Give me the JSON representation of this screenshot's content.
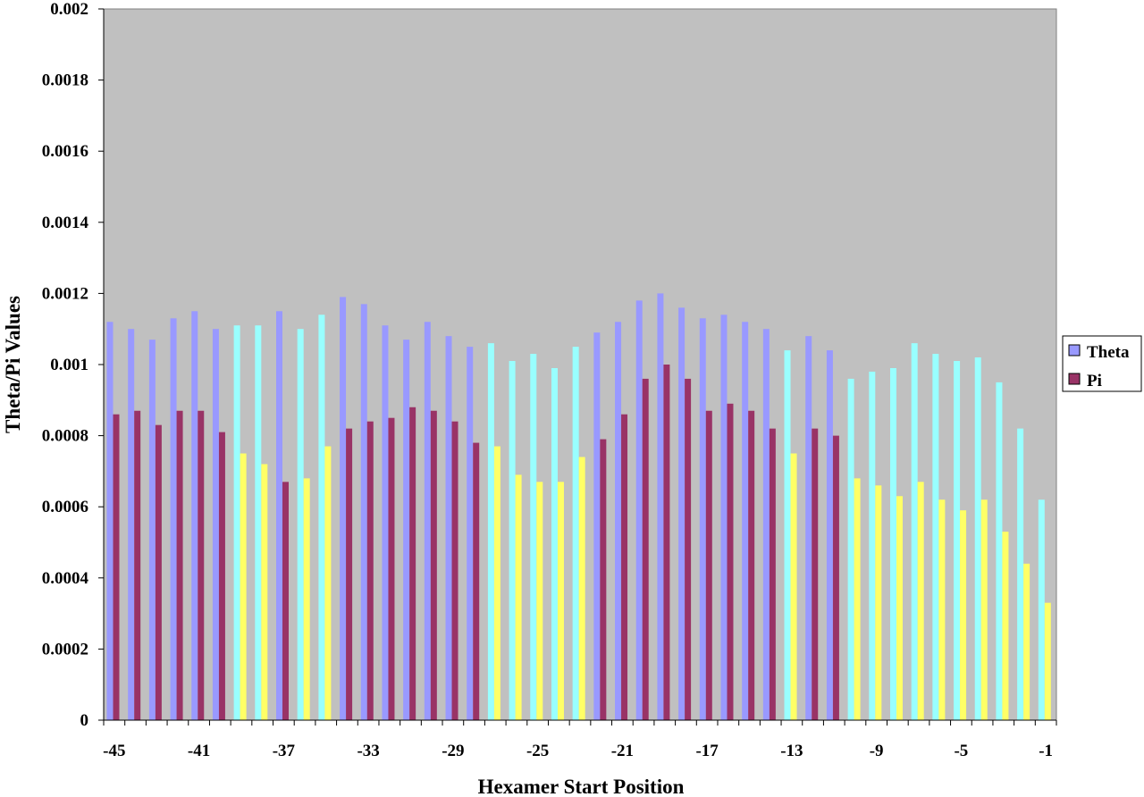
{
  "chart_data": {
    "type": "bar",
    "xlabel": "Hexamer Start Position",
    "ylabel": "Theta/Pi Values",
    "ylim": [
      0,
      0.002
    ],
    "y_ticks": [
      "0",
      "0.0002",
      "0.0004",
      "0.0006",
      "0.0008",
      "0.001",
      "0.0012",
      "0.0014",
      "0.0016",
      "0.0018",
      "0.002"
    ],
    "x_tick_labels": [
      "-45",
      "-41",
      "-37",
      "-33",
      "-29",
      "-25",
      "-21",
      "-17",
      "-13",
      "-9",
      "-5",
      "-1"
    ],
    "categories": [
      -45,
      -44,
      -43,
      -42,
      -41,
      -40,
      -39,
      -38,
      -37,
      -36,
      -35,
      -34,
      -33,
      -32,
      -31,
      -30,
      -29,
      -28,
      -27,
      -26,
      -25,
      -24,
      -23,
      -22,
      -21,
      -20,
      -19,
      -18,
      -17,
      -16,
      -15,
      -14,
      -13,
      -12,
      -11,
      -10,
      -9,
      -8,
      -7,
      -6,
      -5,
      -4,
      -3,
      -2,
      -1
    ],
    "series": [
      {
        "name": "Theta",
        "values": [
          0.00112,
          0.0011,
          0.00107,
          0.00113,
          0.00115,
          0.0011,
          0.00111,
          0.00111,
          0.00115,
          0.0011,
          0.00114,
          0.00119,
          0.00117,
          0.00111,
          0.00107,
          0.00112,
          0.00108,
          0.00105,
          0.00106,
          0.00101,
          0.00103,
          0.00099,
          0.00105,
          0.00109,
          0.00112,
          0.00118,
          0.0012,
          0.00116,
          0.00113,
          0.00114,
          0.00112,
          0.0011,
          0.00104,
          0.00108,
          0.00104,
          0.00096,
          0.00098,
          0.00099,
          0.00106,
          0.00103,
          0.00101,
          0.00102,
          0.00095,
          0.00082,
          0.00062
        ]
      },
      {
        "name": "Pi",
        "values": [
          0.00086,
          0.00087,
          0.00083,
          0.00087,
          0.00087,
          0.00081,
          0.00075,
          0.00072,
          0.00067,
          0.00068,
          0.00077,
          0.00082,
          0.00084,
          0.00085,
          0.00088,
          0.00087,
          0.00084,
          0.00078,
          0.00077,
          0.00069,
          0.00067,
          0.00067,
          0.00074,
          0.00079,
          0.00086,
          0.00096,
          0.001,
          0.00096,
          0.00087,
          0.00089,
          0.00087,
          0.00082,
          0.00075,
          0.00082,
          0.0008,
          0.00068,
          0.00066,
          0.00063,
          0.00067,
          0.00062,
          0.00059,
          0.00062,
          0.00053,
          0.00044,
          0.00033
        ]
      }
    ],
    "highlighted": [
      false,
      false,
      false,
      false,
      false,
      false,
      true,
      true,
      false,
      true,
      true,
      false,
      false,
      false,
      false,
      false,
      false,
      false,
      true,
      true,
      true,
      true,
      true,
      false,
      false,
      false,
      false,
      false,
      false,
      false,
      false,
      false,
      true,
      false,
      false,
      true,
      true,
      true,
      true,
      true,
      true,
      true,
      true,
      true,
      true
    ],
    "grid": false,
    "legend_position": "right",
    "colors": {
      "plot_bg": "#c0c0c0",
      "theta": "#9999ff",
      "pi": "#993366",
      "theta_highlight": "#99ffff",
      "pi_highlight": "#ffff66"
    }
  }
}
